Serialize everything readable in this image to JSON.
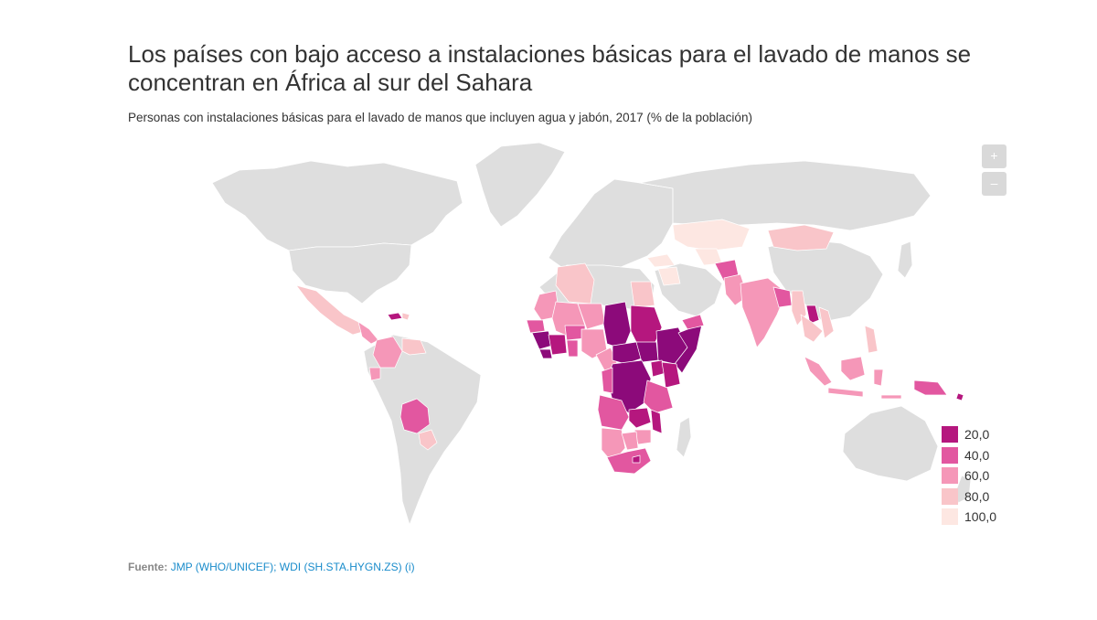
{
  "title": "Los países con bajo acceso a instalaciones básicas para el lavado de manos se concentran en África al sur del Sahara",
  "subtitle": "Personas con instalaciones básicas para el lavado de manos que incluyen agua y jabón, 2017 (% de la población)",
  "zoom": {
    "in_label": "+",
    "out_label": "–"
  },
  "legend": [
    {
      "label": "20,0",
      "color": "#b5177e"
    },
    {
      "label": "40,0",
      "color": "#e257a0"
    },
    {
      "label": "60,0",
      "color": "#f597b8"
    },
    {
      "label": "80,0",
      "color": "#f9c5c9"
    },
    {
      "label": "100,0",
      "color": "#fde7e2"
    }
  ],
  "source": {
    "prefix": "Fuente:",
    "links": "JMP (WHO/UNICEF); WDI (SH.STA.HYGN.ZS) (i)"
  },
  "colors": {
    "no_data": "#dedede",
    "darkest": "#8c0a7a"
  }
}
